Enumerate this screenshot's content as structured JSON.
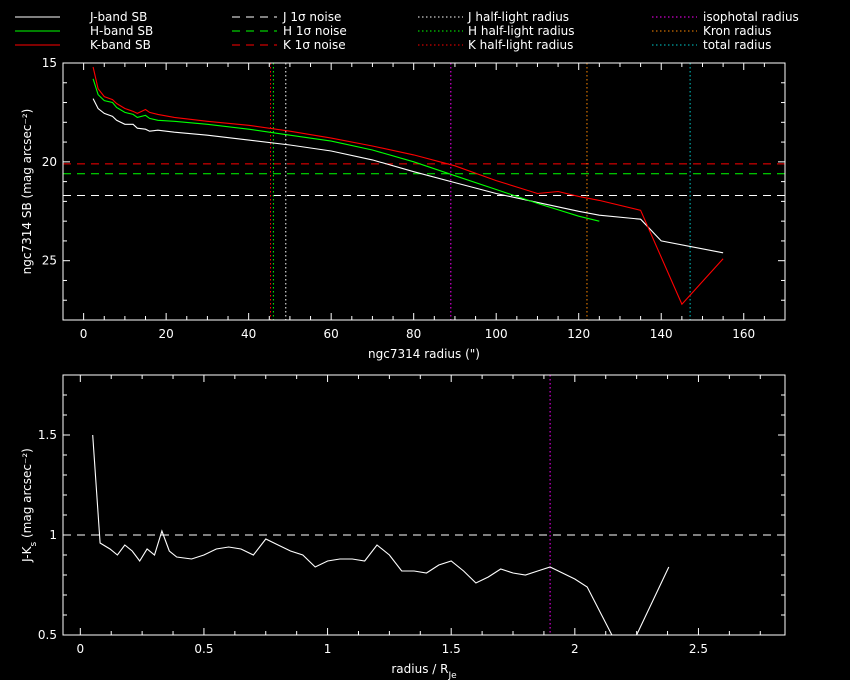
{
  "chart_data": [
    {
      "type": "line",
      "xlabel": "ngc7314 radius (\")",
      "ylabel": "ngc7314 SB (mag arcsec⁻²)",
      "xlim": [
        -5,
        170
      ],
      "ylim": [
        28,
        15
      ],
      "x_ticks": [
        0,
        20,
        40,
        60,
        80,
        100,
        120,
        140,
        160
      ],
      "y_ticks": [
        15,
        20,
        25
      ],
      "legend_placement": "top (above plot)",
      "legend": [
        {
          "label": "J-band SB",
          "color": "#ffffff",
          "style": "solid"
        },
        {
          "label": "H-band SB",
          "color": "#00ff00",
          "style": "solid"
        },
        {
          "label": "K-band SB",
          "color": "#ff0000",
          "style": "solid"
        },
        {
          "label": "J 1σ noise",
          "color": "#ffffff",
          "style": "dashed"
        },
        {
          "label": "H 1σ noise",
          "color": "#00ff00",
          "style": "dashed"
        },
        {
          "label": "K 1σ noise",
          "color": "#ff0000",
          "style": "dashed"
        },
        {
          "label": "J half-light radius",
          "color": "#ffffff",
          "style": "dotted"
        },
        {
          "label": "H half-light radius",
          "color": "#00ff00",
          "style": "dotted"
        },
        {
          "label": "K half-light radius",
          "color": "#ff0000",
          "style": "dotted"
        },
        {
          "label": "isophotal radius",
          "color": "#ff00ff",
          "style": "dotted"
        },
        {
          "label": "Kron radius",
          "color": "#ff8800",
          "style": "dotted"
        },
        {
          "label": "total radius",
          "color": "#00cccc",
          "style": "dotted"
        }
      ],
      "series": [
        {
          "color": "#ffffff",
          "x": [
            2.3,
            3.5,
            5,
            7,
            8,
            10,
            12,
            13,
            15,
            16,
            18,
            22,
            30,
            40,
            50,
            60,
            70,
            80,
            90,
            100,
            110,
            120,
            125,
            135,
            140,
            155
          ],
          "y": [
            16.8,
            17.3,
            17.55,
            17.7,
            17.9,
            18.1,
            18.1,
            18.3,
            18.35,
            18.45,
            18.4,
            18.5,
            18.65,
            18.9,
            19.15,
            19.45,
            19.9,
            20.5,
            21.05,
            21.6,
            22.05,
            22.5,
            22.7,
            22.9,
            24.0,
            24.6
          ]
        },
        {
          "color": "#00ff00",
          "x": [
            2.3,
            3.5,
            5,
            7,
            8,
            10,
            12,
            13,
            15,
            16,
            18,
            22,
            30,
            40,
            50,
            60,
            70,
            80,
            90,
            100,
            110,
            120,
            125
          ],
          "y": [
            15.8,
            16.6,
            16.9,
            17.0,
            17.25,
            17.5,
            17.6,
            17.75,
            17.65,
            17.8,
            17.9,
            17.95,
            18.1,
            18.35,
            18.65,
            18.95,
            19.4,
            20.0,
            20.7,
            21.4,
            22.1,
            22.75,
            23.0
          ]
        },
        {
          "color": "#ff0000",
          "x": [
            2.3,
            3.5,
            5,
            7,
            8,
            10,
            12,
            13,
            15,
            16,
            18,
            22,
            30,
            40,
            50,
            60,
            70,
            80,
            90,
            100,
            110,
            115,
            120,
            125,
            135,
            145,
            155
          ],
          "y": [
            15.2,
            16.3,
            16.7,
            16.85,
            17.05,
            17.3,
            17.45,
            17.55,
            17.35,
            17.5,
            17.6,
            17.75,
            17.95,
            18.15,
            18.45,
            18.8,
            19.2,
            19.65,
            20.2,
            20.95,
            21.6,
            21.5,
            21.75,
            21.95,
            22.45,
            27.2,
            24.9
          ]
        }
      ],
      "hlines": [
        {
          "y": 21.7,
          "color": "#ffffff",
          "style": "dashed"
        },
        {
          "y": 20.6,
          "color": "#00ff00",
          "style": "dashed"
        },
        {
          "y": 20.1,
          "color": "#ff0000",
          "style": "dashed"
        }
      ],
      "vlines": [
        {
          "x": 49,
          "color": "#ffffff",
          "style": "dotted"
        },
        {
          "x": 46,
          "color": "#00ff00",
          "style": "dotted"
        },
        {
          "x": 45.3,
          "color": "#ff0000",
          "style": "dotted"
        },
        {
          "x": 89,
          "color": "#ff00ff",
          "style": "dotted"
        },
        {
          "x": 122,
          "color": "#ff8800",
          "style": "dotted"
        },
        {
          "x": 147,
          "color": "#00cccc",
          "style": "dotted"
        }
      ]
    },
    {
      "type": "line",
      "xlabel": "radius / R",
      "xlabel_sub": "Je",
      "ylabel": "J-K",
      "ylabel_sub": "s",
      "ylabel_tail": " (mag arcsec⁻²)",
      "xlim": [
        -0.07,
        2.85
      ],
      "ylim": [
        0.5,
        1.8
      ],
      "x_ticks": [
        0,
        0.5,
        1,
        1.5,
        2,
        2.5
      ],
      "y_ticks": [
        0.5,
        1,
        1.5
      ],
      "series": [
        {
          "color": "#ffffff",
          "x": [
            0.05,
            0.08,
            0.12,
            0.15,
            0.18,
            0.21,
            0.24,
            0.27,
            0.3,
            0.33,
            0.36,
            0.39,
            0.45,
            0.5,
            0.55,
            0.6,
            0.65,
            0.7,
            0.75,
            0.8,
            0.85,
            0.9,
            0.95,
            1.0,
            1.05,
            1.1,
            1.15,
            1.2,
            1.25,
            1.3,
            1.35,
            1.4,
            1.45,
            1.5,
            1.55,
            1.6,
            1.65,
            1.7,
            1.75,
            1.8,
            1.85,
            1.9,
            2.0,
            2.05,
            2.15,
            2.25,
            2.38
          ],
          "y": [
            1.5,
            0.96,
            0.93,
            0.9,
            0.95,
            0.92,
            0.87,
            0.93,
            0.9,
            1.02,
            0.92,
            0.89,
            0.88,
            0.9,
            0.93,
            0.94,
            0.93,
            0.9,
            0.98,
            0.95,
            0.92,
            0.9,
            0.84,
            0.87,
            0.88,
            0.88,
            0.87,
            0.95,
            0.9,
            0.82,
            0.82,
            0.81,
            0.85,
            0.87,
            0.82,
            0.76,
            0.79,
            0.83,
            0.81,
            0.8,
            0.82,
            0.84,
            0.78,
            0.74,
            0.5,
            0.5,
            0.84
          ]
        }
      ],
      "hlines": [
        {
          "y": 1.0,
          "color": "#ffffff",
          "style": "dashed"
        }
      ],
      "vlines": [
        {
          "x": 1.9,
          "color": "#ff00ff",
          "style": "dotted"
        }
      ]
    }
  ]
}
